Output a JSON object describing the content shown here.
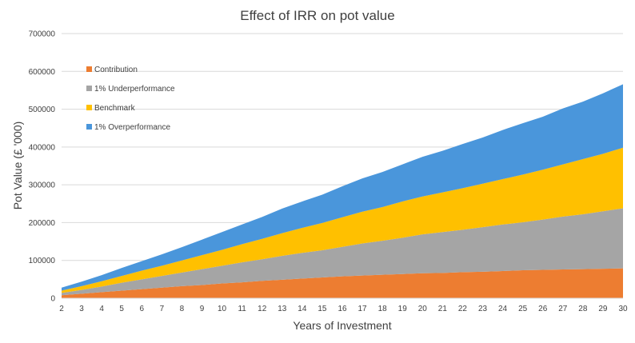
{
  "chart_data": {
    "type": "area",
    "stacked": true,
    "title": "Effect of IRR on pot value",
    "xlabel": "Years of Investment",
    "ylabel": "Pot Value (£ '000)",
    "x": [
      2,
      3,
      4,
      5,
      6,
      7,
      8,
      9,
      10,
      11,
      12,
      13,
      14,
      15,
      16,
      17,
      18,
      19,
      20,
      21,
      22,
      23,
      24,
      25,
      26,
      27,
      28,
      29,
      30
    ],
    "ylim": [
      0,
      700000
    ],
    "yticks": [
      0,
      100000,
      200000,
      300000,
      400000,
      500000,
      600000,
      700000
    ],
    "grid": true,
    "legend_position": "top-left",
    "series": [
      {
        "name": "Contribution",
        "color": "#ED7D31",
        "values": [
          8000,
          12000,
          16000,
          20000,
          24000,
          28000,
          32000,
          35000,
          39000,
          42000,
          46000,
          49000,
          52000,
          55000,
          58000,
          60000,
          62000,
          64000,
          66000,
          67000,
          69000,
          70000,
          72000,
          74000,
          75000,
          76000,
          77000,
          78000,
          79000
        ]
      },
      {
        "name": "1% Underperformance",
        "color": "#A5A5A5",
        "values": [
          6000,
          10000,
          15000,
          21000,
          26000,
          31000,
          36000,
          42000,
          47000,
          53000,
          57000,
          63000,
          68000,
          72000,
          78000,
          85000,
          90000,
          96000,
          103000,
          108000,
          112000,
          118000,
          123000,
          127000,
          133000,
          140000,
          145000,
          152000,
          159000
        ]
      },
      {
        "name": "Benchmark",
        "color": "#FFC000",
        "values": [
          6000,
          10000,
          14000,
          18000,
          23000,
          27000,
          32000,
          37000,
          42000,
          48000,
          54000,
          60000,
          66000,
          72000,
          78000,
          84000,
          89000,
          96000,
          100000,
          105000,
          110000,
          115000,
          120000,
          126000,
          132000,
          138000,
          146000,
          152000,
          160000
        ]
      },
      {
        "name": "1% Overperformance",
        "color": "#4A96DB",
        "values": [
          8000,
          12000,
          16000,
          21000,
          25000,
          30000,
          35000,
          41000,
          47000,
          52000,
          58000,
          65000,
          70000,
          75000,
          82000,
          88000,
          93000,
          98000,
          105000,
          110000,
          117000,
          122000,
          130000,
          136000,
          140000,
          148000,
          152000,
          160000,
          168000
        ]
      }
    ]
  }
}
